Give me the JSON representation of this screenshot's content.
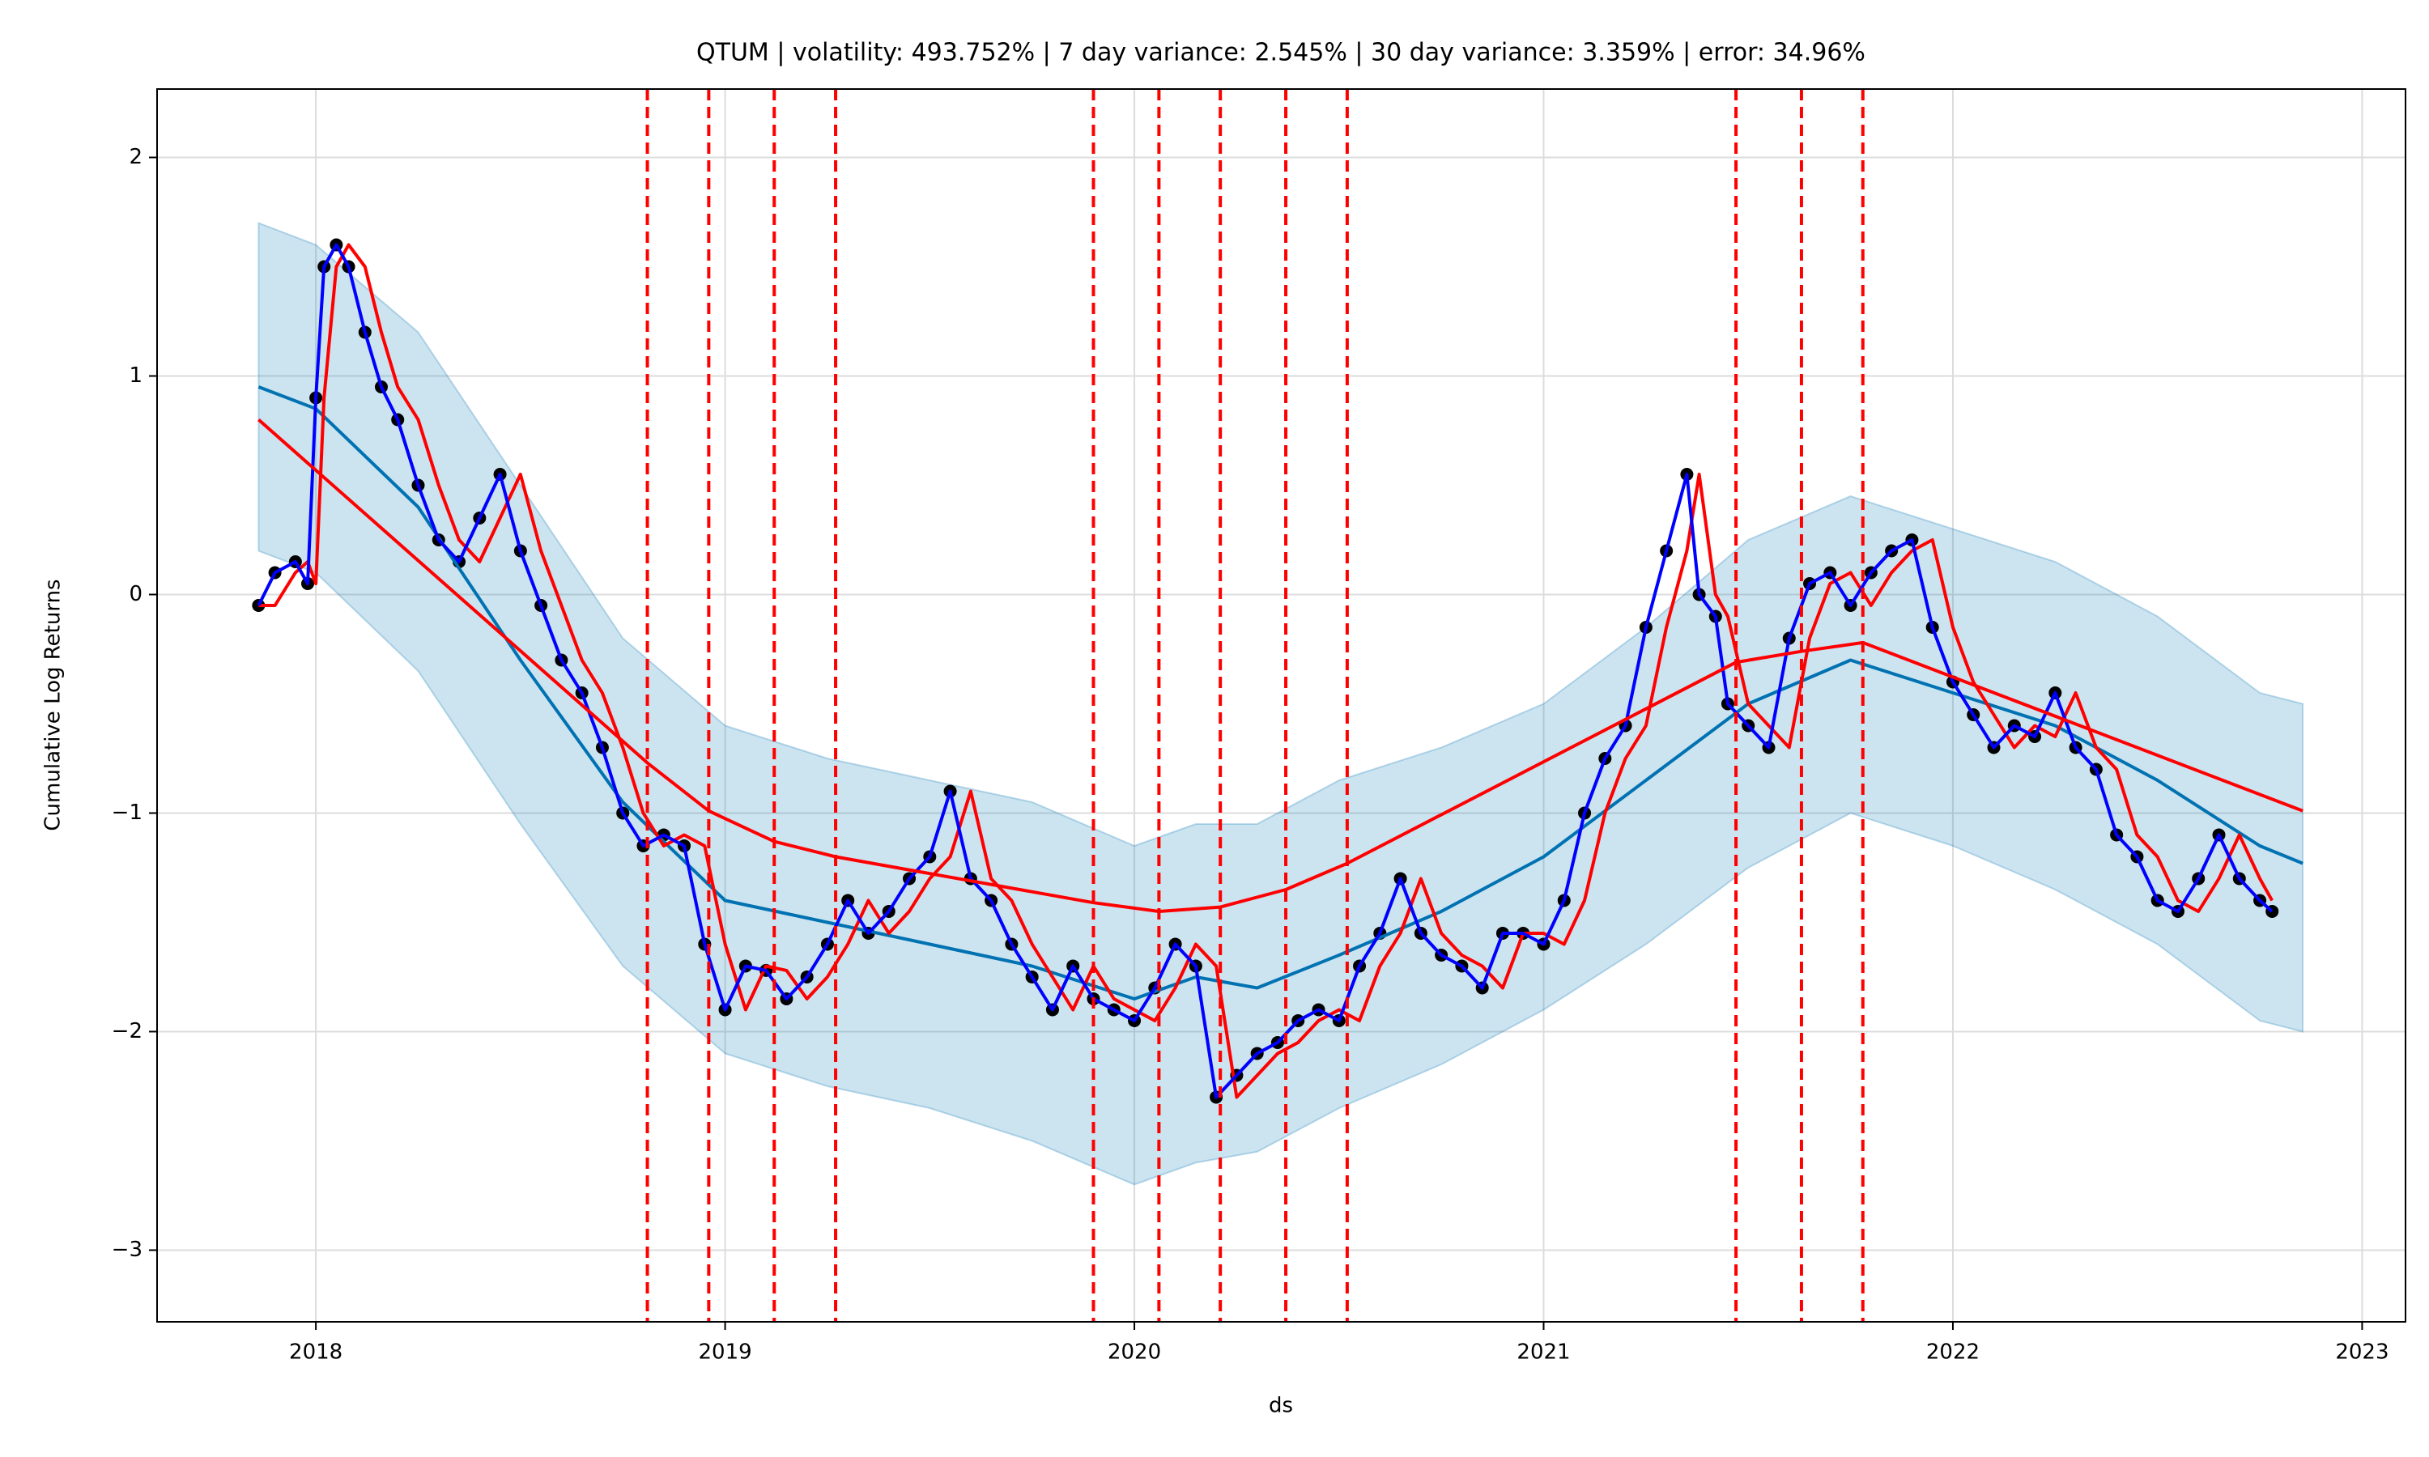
{
  "chart_data": {
    "type": "scatter",
    "title": "QTUM | volatility: 493.752% | 7 day variance: 2.545% | 30 day variance: 3.359% | error: 34.96%",
    "x_label": "ds",
    "y_label": "Cumulative Log Returns",
    "xlim": [
      2017.612,
      2023.106
    ],
    "ylim": [
      -3.328,
      2.313
    ],
    "xticks": [
      2018,
      2019,
      2020,
      2021,
      2022,
      2023
    ],
    "yticks": [
      {
        "value": -3,
        "label": "−3"
      },
      {
        "value": -2,
        "label": "−2"
      },
      {
        "value": -1,
        "label": "−1"
      },
      0,
      1,
      2
    ],
    "grid": true,
    "color": "#000000",
    "x": [
      2017.86,
      2017.9,
      2017.95,
      2017.98,
      2018.0,
      2018.02,
      2018.05,
      2018.08,
      2018.12,
      2018.16,
      2018.2,
      2018.25,
      2018.3,
      2018.35,
      2018.4,
      2018.45,
      2018.5,
      2018.55,
      2018.6,
      2018.65,
      2018.7,
      2018.75,
      2018.8,
      2018.85,
      2018.9,
      2018.95,
      2019.0,
      2019.05,
      2019.1,
      2019.15,
      2019.2,
      2019.25,
      2019.3,
      2019.35,
      2019.4,
      2019.45,
      2019.5,
      2019.55,
      2019.6,
      2019.65,
      2019.7,
      2019.75,
      2019.8,
      2019.85,
      2019.9,
      2019.95,
      2020.0,
      2020.05,
      2020.1,
      2020.15,
      2020.2,
      2020.25,
      2020.3,
      2020.35,
      2020.4,
      2020.45,
      2020.5,
      2020.55,
      2020.6,
      2020.65,
      2020.7,
      2020.75,
      2020.8,
      2020.85,
      2020.9,
      2020.95,
      2021.0,
      2021.05,
      2021.1,
      2021.15,
      2021.2,
      2021.25,
      2021.3,
      2021.35,
      2021.38,
      2021.42,
      2021.45,
      2021.5,
      2021.55,
      2021.6,
      2021.65,
      2021.7,
      2021.75,
      2021.8,
      2021.85,
      2021.9,
      2021.95,
      2022.0,
      2022.05,
      2022.1,
      2022.15,
      2022.2,
      2022.25,
      2022.3,
      2022.35,
      2022.4,
      2022.45,
      2022.5,
      2022.55,
      2022.6,
      2022.65,
      2022.7,
      2022.75,
      2022.78
    ],
    "values": [
      -0.05,
      0.1,
      0.15,
      0.05,
      0.9,
      1.5,
      1.6,
      1.5,
      1.2,
      0.95,
      0.8,
      0.5,
      0.25,
      0.15,
      0.35,
      0.55,
      0.2,
      -0.05,
      -0.3,
      -0.45,
      -0.7,
      -1.0,
      -1.15,
      -1.1,
      -1.15,
      -1.6,
      -1.9,
      -1.7,
      -1.72,
      -1.85,
      -1.75,
      -1.6,
      -1.4,
      -1.55,
      -1.45,
      -1.3,
      -1.2,
      -0.9,
      -1.3,
      -1.4,
      -1.6,
      -1.75,
      -1.9,
      -1.7,
      -1.85,
      -1.9,
      -1.95,
      -1.8,
      -1.6,
      -1.7,
      -2.3,
      -2.2,
      -2.1,
      -2.05,
      -1.95,
      -1.9,
      -1.95,
      -1.7,
      -1.55,
      -1.3,
      -1.55,
      -1.65,
      -1.7,
      -1.8,
      -1.55,
      -1.55,
      -1.6,
      -1.4,
      -1.0,
      -0.75,
      -0.6,
      -0.15,
      0.2,
      0.55,
      0.0,
      -0.1,
      -0.5,
      -0.6,
      -0.7,
      -0.2,
      0.05,
      0.1,
      -0.05,
      0.1,
      0.2,
      0.25,
      -0.15,
      -0.4,
      -0.55,
      -0.7,
      -0.6,
      -0.65,
      -0.45,
      -0.7,
      -0.8,
      -1.1,
      -1.2,
      -1.4,
      -1.45,
      -1.3,
      -1.1,
      -1.3,
      -1.4,
      -1.45
    ],
    "smooth": [
      {
        "color": "#ff0000",
        "values": [
          -0.05,
          -0.05,
          0.1,
          0.15,
          0.05,
          0.9,
          1.5,
          1.6,
          1.5,
          1.2,
          0.95,
          0.8,
          0.5,
          0.25,
          0.15,
          0.35,
          0.55,
          0.2,
          -0.05,
          -0.3,
          -0.45,
          -0.7,
          -1.0,
          -1.15,
          -1.1,
          -1.15,
          -1.6,
          -1.9,
          -1.7,
          -1.72,
          -1.85,
          -1.75,
          -1.6,
          -1.4,
          -1.55,
          -1.45,
          -1.3,
          -1.2,
          -0.9,
          -1.3,
          -1.4,
          -1.6,
          -1.75,
          -1.9,
          -1.7,
          -1.85,
          -1.9,
          -1.95,
          -1.8,
          -1.6,
          -1.7,
          -2.3,
          -2.2,
          -2.1,
          -2.05,
          -1.95,
          -1.9,
          -1.95,
          -1.7,
          -1.55,
          -1.3,
          -1.55,
          -1.65,
          -1.7,
          -1.8,
          -1.55,
          -1.55,
          -1.6,
          -1.4,
          -1.0,
          -0.75,
          -0.6,
          -0.15,
          0.2,
          0.55,
          0.0,
          -0.1,
          -0.5,
          -0.6,
          -0.7,
          -0.2,
          0.05,
          0.1,
          -0.05,
          0.1,
          0.2,
          0.25,
          -0.15,
          -0.4,
          -0.55,
          -0.7,
          -0.6,
          -0.65,
          -0.45,
          -0.7,
          -0.8,
          -1.1,
          -1.2,
          -1.4,
          -1.45,
          -1.3,
          -1.1,
          -1.3,
          -1.4
        ]
      },
      {
        "color": "#0000ff",
        "values": [
          -0.05,
          0.1,
          0.15,
          0.05,
          0.9,
          1.5,
          1.6,
          1.5,
          1.2,
          0.95,
          0.8,
          0.5,
          0.25,
          0.15,
          0.35,
          0.55,
          0.2,
          -0.05,
          -0.3,
          -0.45,
          -0.7,
          -1.0,
          -1.15,
          -1.1,
          -1.15,
          -1.6,
          -1.9,
          -1.7,
          -1.72,
          -1.85,
          -1.75,
          -1.6,
          -1.4,
          -1.55,
          -1.45,
          -1.3,
          -1.2,
          -0.9,
          -1.3,
          -1.4,
          -1.6,
          -1.75,
          -1.9,
          -1.7,
          -1.85,
          -1.9,
          -1.95,
          -1.8,
          -1.6,
          -1.7,
          -2.3,
          -2.2,
          -2.1,
          -2.05,
          -1.95,
          -1.9,
          -1.95,
          -1.7,
          -1.55,
          -1.3,
          -1.55,
          -1.65,
          -1.7,
          -1.8,
          -1.55,
          -1.55,
          -1.6,
          -1.4,
          -1.0,
          -0.75,
          -0.6,
          -0.15,
          0.2,
          0.55,
          0.0,
          -0.1,
          -0.5,
          -0.6,
          -0.7,
          -0.2,
          0.05,
          0.1,
          -0.05,
          0.1,
          0.2,
          0.25,
          -0.15,
          -0.4,
          -0.55,
          -0.7,
          -0.6,
          -0.65,
          -0.45,
          -0.7,
          -0.8,
          -1.1,
          -1.2,
          -1.4,
          -1.45,
          -1.3,
          -1.1,
          -1.3,
          -1.4,
          -1.45
        ]
      }
    ],
    "forecast": {
      "color": "#0072b2",
      "band_color": "#0072b2",
      "x": [
        2017.86,
        2018.0,
        2018.25,
        2018.5,
        2018.75,
        2019.0,
        2019.25,
        2019.5,
        2019.75,
        2020.0,
        2020.15,
        2020.3,
        2020.5,
        2020.75,
        2021.0,
        2021.25,
        2021.5,
        2021.75,
        2022.0,
        2022.25,
        2022.5,
        2022.75,
        2022.855
      ],
      "values": [
        0.95,
        0.85,
        0.4,
        -0.3,
        -0.95,
        -1.4,
        -1.5,
        -1.6,
        -1.7,
        -1.85,
        -1.75,
        -1.8,
        -1.65,
        -1.45,
        -1.2,
        -0.85,
        -0.5,
        -0.3,
        -0.45,
        -0.6,
        -0.85,
        -1.15,
        -1.23
      ],
      "upper": [
        1.7,
        1.6,
        1.2,
        0.5,
        -0.2,
        -0.6,
        -0.75,
        -0.85,
        -0.95,
        -1.15,
        -1.05,
        -1.05,
        -0.85,
        -0.7,
        -0.5,
        -0.15,
        0.25,
        0.45,
        0.3,
        0.15,
        -0.1,
        -0.45,
        -0.5
      ],
      "lower": [
        0.2,
        0.1,
        -0.35,
        -1.05,
        -1.7,
        -2.1,
        -2.25,
        -2.35,
        -2.5,
        -2.7,
        -2.6,
        -2.55,
        -2.35,
        -2.15,
        -1.9,
        -1.6,
        -1.25,
        -1.0,
        -1.15,
        -1.35,
        -1.6,
        -1.95,
        -2.0
      ]
    },
    "trend": {
      "color": "#ff0000",
      "x": [
        2017.86,
        2018.81,
        2018.96,
        2019.12,
        2019.27,
        2019.9,
        2020.06,
        2020.21,
        2020.37,
        2020.52,
        2021.47,
        2021.63,
        2021.78,
        2022.855
      ],
      "values": [
        0.8,
        -0.77,
        -0.99,
        -1.13,
        -1.2,
        -1.41,
        -1.45,
        -1.43,
        -1.35,
        -1.23,
        -0.31,
        -0.26,
        -0.22,
        -0.99
      ]
    },
    "changepoints": {
      "color": "#ff0000",
      "x": [
        2018.81,
        2018.96,
        2019.12,
        2019.27,
        2019.9,
        2020.06,
        2020.21,
        2020.37,
        2020.52,
        2021.47,
        2021.63,
        2021.78
      ]
    }
  }
}
